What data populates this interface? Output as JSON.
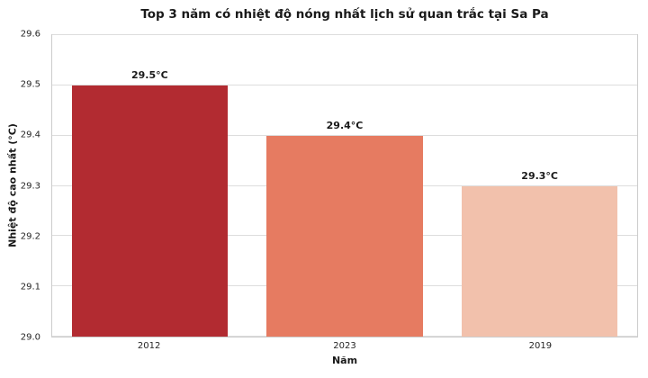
{
  "chart_data": {
    "type": "bar",
    "title": "Top 3 năm có nhiệt độ nóng nhất lịch sử quan trắc tại Sa Pa",
    "xlabel": "Năm",
    "ylabel": "Nhiệt độ cao nhất (°C)",
    "categories": [
      "2012",
      "2023",
      "2019"
    ],
    "values": [
      29.5,
      29.4,
      29.3
    ],
    "bar_labels": [
      "29.5°C",
      "29.4°C",
      "29.3°C"
    ],
    "bar_colors": [
      "#b22b31",
      "#e67b61",
      "#f2c1ac"
    ],
    "ylim": [
      29.0,
      29.6
    ],
    "yticks": [
      "29.0",
      "29.1",
      "29.2",
      "29.3",
      "29.4",
      "29.5",
      "29.6"
    ],
    "grid": "horizontal",
    "grid_color": "#dddddd",
    "spine_color": "#cccccc",
    "legend": "none",
    "bar_width_ratio": 0.8
  }
}
